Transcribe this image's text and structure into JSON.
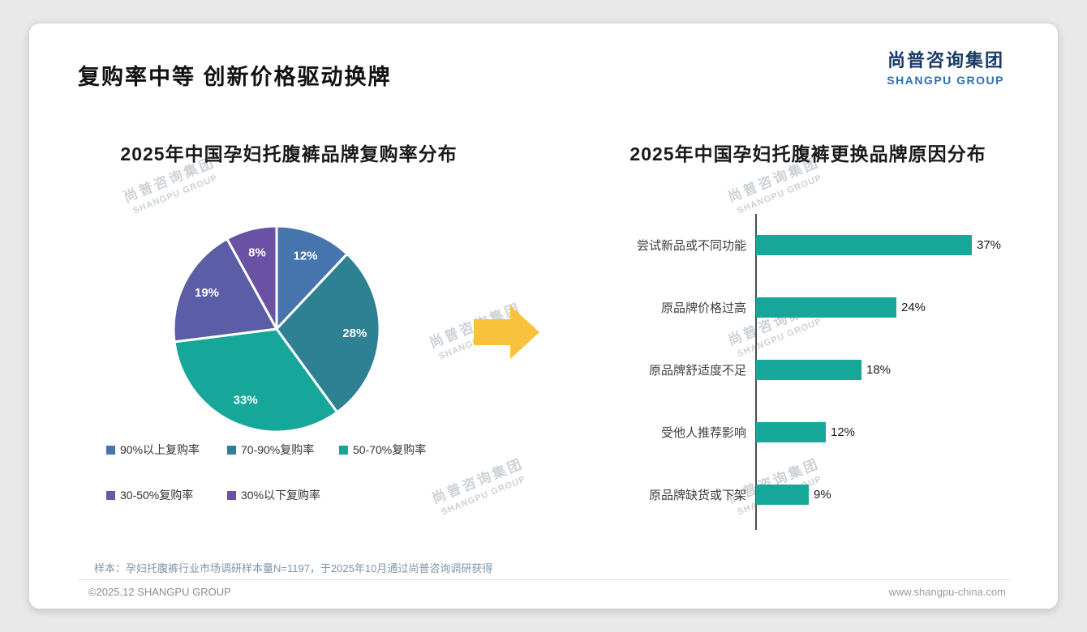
{
  "page": {
    "title": "复购率中等 创新价格驱动换牌",
    "logo": {
      "cn": "尚普咨询集团",
      "en": "SHANGPU GROUP"
    },
    "watermark": {
      "cn": "尚普咨询集团",
      "en": "SHANGPU GROUP"
    },
    "footer": {
      "note": "样本：孕妇托腹裤行业市场调研样本量N=1197，于2025年10月通过尚普咨询调研获得",
      "copyright": "©2025.12 SHANGPU GROUP",
      "website": "www.shangpu-china.com"
    }
  },
  "chart_data": [
    {
      "type": "pie",
      "title": "2025年中国孕妇托腹裤品牌复购率分布",
      "labels": [
        "90%以上复购率",
        "70-90%复购率",
        "50-70%复购率",
        "30-50%复购率",
        "30%以下复购率"
      ],
      "values": [
        12,
        28,
        33,
        19,
        8
      ],
      "value_labels": [
        "12%",
        "28%",
        "33%",
        "19%",
        "8%"
      ],
      "colors": [
        "#4674ad",
        "#2e8093",
        "#16a79a",
        "#5b5ea6",
        "#6a51a3"
      ],
      "start_angle_deg": 0,
      "direction": "clockwise",
      "legend_position": "bottom"
    },
    {
      "type": "bar",
      "orientation": "horizontal",
      "title": "2025年中国孕妇托腹裤更换品牌原因分布",
      "categories": [
        "尝试新品或不同功能",
        "原品牌价格过高",
        "原品牌舒适度不足",
        "受他人推荐影响",
        "原品牌缺货或下架"
      ],
      "values": [
        37,
        24,
        18,
        12,
        9
      ],
      "value_labels": [
        "37%",
        "24%",
        "18%",
        "12%",
        "9%"
      ],
      "bar_color": "#16a79a",
      "xlim": [
        0,
        40
      ],
      "grid": false
    }
  ],
  "arrow_color": "#f9c23c"
}
